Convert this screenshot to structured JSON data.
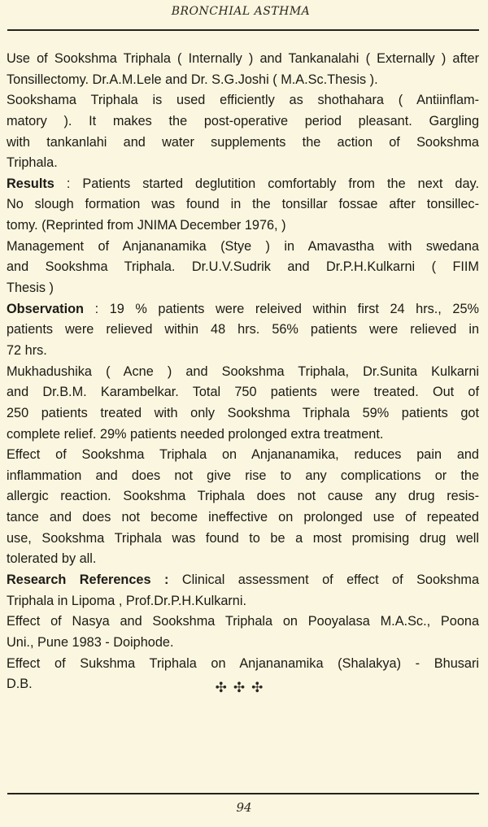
{
  "header": {
    "title": "BRONCHIAL ASTHMA"
  },
  "paragraphs": [
    {
      "lines": [
        "Use of Sookshma Triphala ( Internally ) and Tankanalahi ( Externally ) after",
        "Tonsillectomy. Dr.A.M.Lele and Dr. S.G.Joshi ( M.A.Sc.Thesis )."
      ]
    },
    {
      "lines": [
        "Sookshama Triphala is used efficiently as shothahara ( Antiinflam-",
        "matory ).  It makes the post-operative period pleasant. Gargling",
        "with tankanlahi and water supplements the action of Sookshma",
        "Triphala."
      ]
    },
    {
      "lead": "Results",
      "lines": [
        " : Patients started deglutition comfortably from the next day.",
        "No slough formation was found in the tonsillar fossae after tonsillec-",
        "tomy. (Reprinted from JNIMA December 1976, )"
      ]
    },
    {
      "lines": [
        "Management of Anjananamika (Stye ) in Amavastha with swedana",
        "and Sookshma Triphala. Dr.U.V.Sudrik and Dr.P.H.Kulkarni ( FIIM",
        "Thesis )"
      ]
    },
    {
      "lead": "Observation",
      "lines": [
        " : 19 % patients were releived within first 24 hrs., 25%",
        "patients were relieved within 48 hrs. 56% patients were relieved in",
        "72 hrs."
      ]
    },
    {
      "lines": [
        "Mukhadushika ( Acne ) and Sookshma Triphala, Dr.Sunita Kulkarni",
        "and Dr.B.M. Karambelkar. Total 750 patients were treated.  Out of",
        "250 patients treated with only Sookshma Triphala 59% patients got",
        "complete relief. 29% patients needed prolonged extra treatment."
      ]
    },
    {
      "lines": [
        "Effect of Sookshma Triphala on Anjananamika, reduces pain and",
        "inflammation and does not give rise to any complications or the",
        "allergic reaction.  Sookshma Triphala does not cause any drug resis-",
        "tance and does not become ineffective on prolonged use of repeated",
        "use, Sookshma Triphala was found to be a most promising drug well",
        "tolerated by all."
      ]
    },
    {
      "lead": "Research References :",
      "lines": [
        " Clinical assessment of effect  of Sookshma",
        "Triphala in Lipoma , Prof.Dr.P.H.Kulkarni."
      ]
    },
    {
      "lines": [
        "Effect of Nasya and Sookshma Triphala on Pooyalasa M.A.Sc., Poona",
        "Uni., Pune 1983 - Doiphode."
      ]
    },
    {
      "lines": [
        "Effect of Sukshma Triphala on Anjananamika (Shalakya) - Bhusari",
        "D.B."
      ]
    }
  ],
  "ornament": "✣✣✣",
  "footer": {
    "page_number": "94"
  }
}
